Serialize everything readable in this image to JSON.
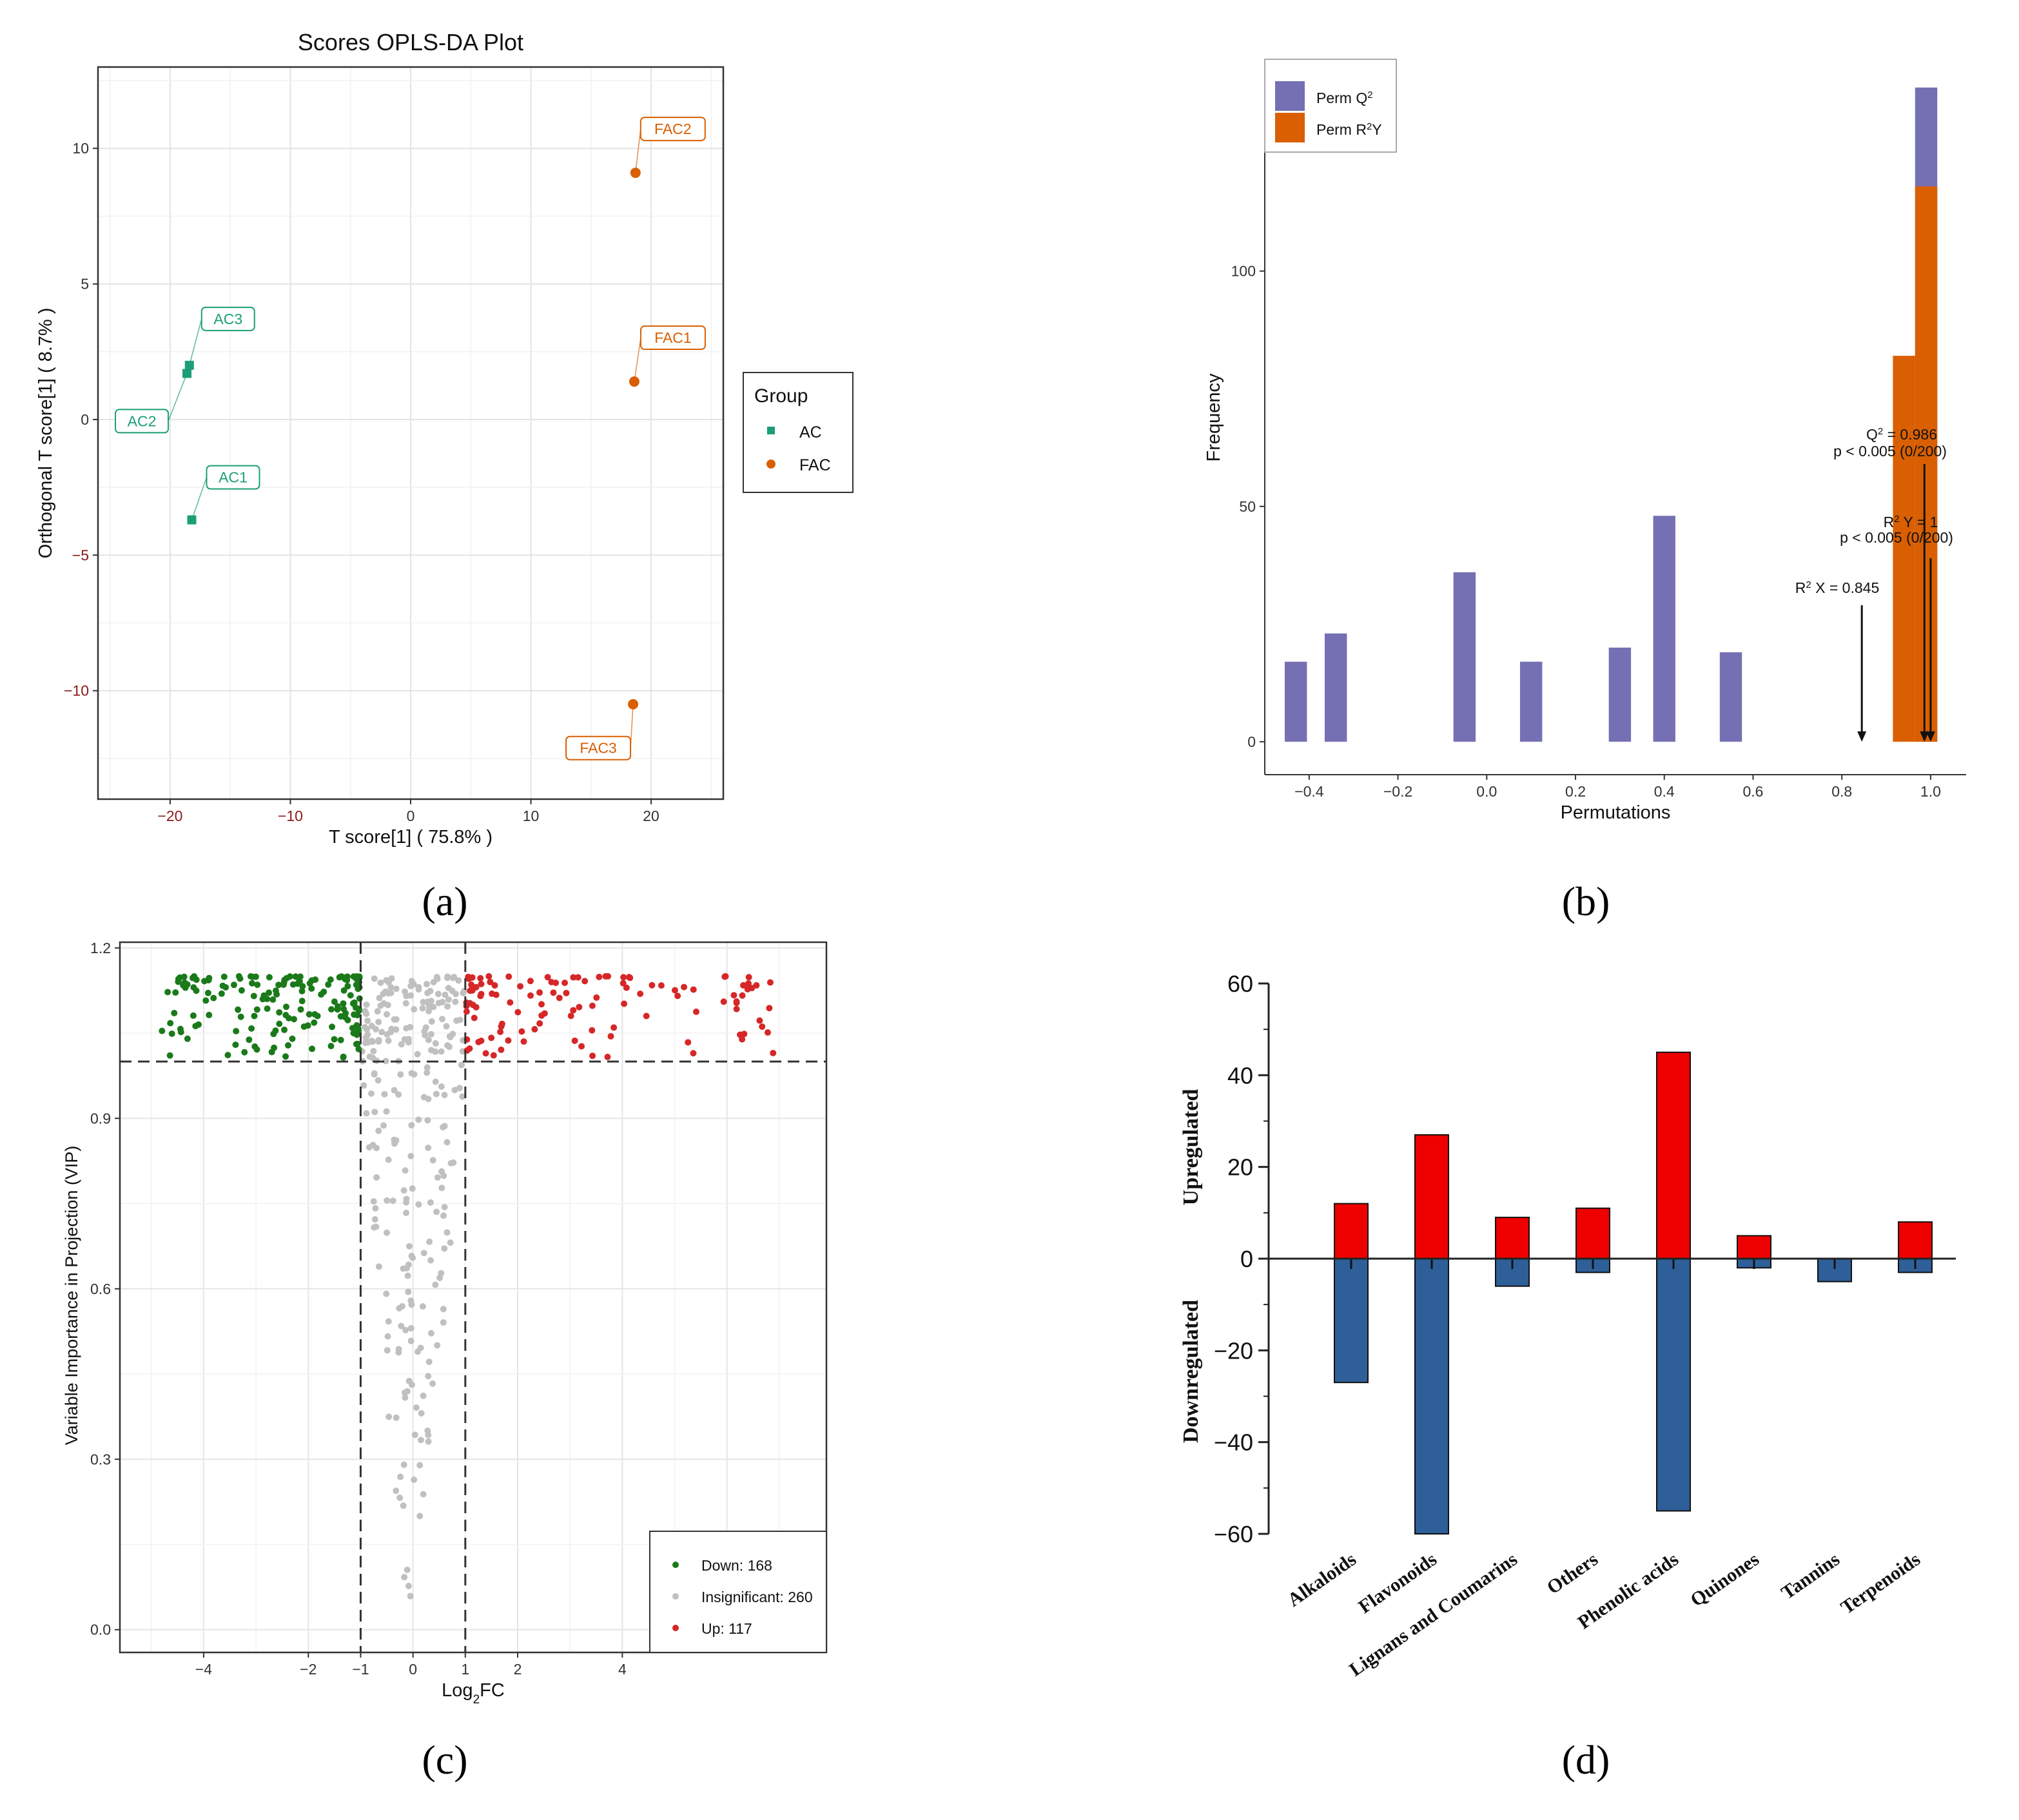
{
  "panel_labels": {
    "a": "(a)",
    "b": "(b)",
    "c": "(c)",
    "d": "(d)"
  },
  "chart_data": [
    {
      "id": "a",
      "type": "scatter",
      "title": "Scores OPLS-DA Plot",
      "xlabel": "T score[1] ( 75.8% )",
      "ylabel": "Orthogonal T score[1] ( 8.7% )",
      "xlim": [
        -26,
        26
      ],
      "ylim": [
        -14,
        13
      ],
      "xticks": [
        -20,
        -10,
        0,
        10,
        20
      ],
      "yticks": [
        -10,
        -5,
        0,
        5,
        10
      ],
      "legend": {
        "title": "Group",
        "position": "right",
        "entries": [
          "AC",
          "FAC"
        ]
      },
      "colors": {
        "AC": "#1b9e77",
        "FAC": "#d95f02"
      },
      "points": [
        {
          "label": "AC1",
          "group": "AC",
          "x": -18.2,
          "y": -3.7
        },
        {
          "label": "AC2",
          "group": "AC",
          "x": -18.6,
          "y": 1.7
        },
        {
          "label": "AC3",
          "group": "AC",
          "x": -18.4,
          "y": 2.0
        },
        {
          "label": "FAC1",
          "group": "FAC",
          "x": 18.6,
          "y": 1.4
        },
        {
          "label": "FAC2",
          "group": "FAC",
          "x": 18.7,
          "y": 9.1
        },
        {
          "label": "FAC3",
          "group": "FAC",
          "x": 18.5,
          "y": -10.5
        }
      ]
    },
    {
      "id": "b",
      "type": "bar",
      "xlabel": "Permutations",
      "ylabel": "Frequency",
      "xlim": [
        -0.5,
        1.08
      ],
      "ylim": [
        -7,
        145
      ],
      "xticks": [
        -0.4,
        -0.2,
        0.0,
        0.2,
        0.4,
        0.6,
        0.8,
        1.0
      ],
      "xtick_labels": [
        "−0.4",
        "−0.2",
        "0.0",
        "0.2",
        "0.4",
        "0.6",
        "0.8",
        "1.0"
      ],
      "yticks": [
        0,
        50,
        100
      ],
      "legend": {
        "position": "top-left",
        "entries": [
          "Perm Q2",
          "Perm R2Y"
        ]
      },
      "colors": {
        "q2": "#7570b3",
        "r2y": "#d95f02"
      },
      "series": [
        {
          "name": "Perm Q2",
          "bin_width": 0.05,
          "x": [
            -0.43,
            -0.34,
            -0.05,
            0.1,
            0.3,
            0.4,
            0.55,
            0.99
          ],
          "values": [
            17,
            23,
            36,
            17,
            20,
            48,
            19,
            139
          ]
        },
        {
          "name": "Perm R2Y",
          "bin_width": 0.05,
          "x": [
            0.94,
            0.99
          ],
          "values": [
            82,
            118
          ]
        }
      ],
      "annotations": [
        {
          "lines": [
            "Q2 = 0.986",
            "p < 0.005 (0/200)"
          ],
          "x": 0.986
        },
        {
          "lines": [
            "R2 Y = 1",
            "p < 0.005 (0/200)"
          ],
          "x": 1.0
        },
        {
          "lines": [
            "R2 X = 0.845"
          ],
          "x": 0.845
        }
      ]
    },
    {
      "id": "c",
      "type": "scatter",
      "xlabel": "Log2FC",
      "ylabel": "Variable Importance in Projection (VIP)",
      "xlim": [
        -5.6,
        7.9
      ],
      "ylim": [
        -0.04,
        1.21
      ],
      "xticks": [
        -4,
        -2,
        -1,
        0,
        1,
        2,
        4
      ],
      "xtick_labels": [
        "−4",
        "−2",
        "−1",
        "0",
        "1",
        "2",
        "4"
      ],
      "yticks": [
        0.0,
        0.3,
        0.6,
        0.9,
        1.2
      ],
      "thresholds": {
        "vip": 1.0,
        "fc": [
          -1,
          1
        ]
      },
      "legend": {
        "position": "bottom-right",
        "entries": [
          "Down: 168",
          "Insignificant: 260",
          "Up: 117"
        ]
      },
      "counts": {
        "down": 168,
        "insignificant": 260,
        "up": 117
      },
      "colors": {
        "down": "#1a7a1a",
        "insignificant": "#c0c0c0",
        "up": "#d62728"
      }
    },
    {
      "id": "d",
      "type": "bar",
      "categories": [
        "Alkaloids",
        "Flavonoids",
        "Lignans and Coumarins",
        "Others",
        "Phenolic acids",
        "Quinones",
        "Tannins",
        "Terpenoids"
      ],
      "ylabel_up": "Upregulated",
      "ylabel_down": "Downregulated",
      "ylim": [
        -60,
        60
      ],
      "yticks": [
        -60,
        -40,
        -20,
        0,
        20,
        40,
        60
      ],
      "ytick_labels": [
        "−60",
        "−40",
        "−20",
        "0",
        "20",
        "40",
        "60"
      ],
      "colors": {
        "up": "#ee0000",
        "down": "#2e5f99"
      },
      "series": [
        {
          "name": "Upregulated",
          "values": [
            12,
            27,
            9,
            11,
            45,
            5,
            0,
            8
          ]
        },
        {
          "name": "Downregulated",
          "values": [
            -27,
            -60,
            -6,
            -3,
            -55,
            -2,
            -5,
            -3
          ]
        }
      ]
    }
  ]
}
